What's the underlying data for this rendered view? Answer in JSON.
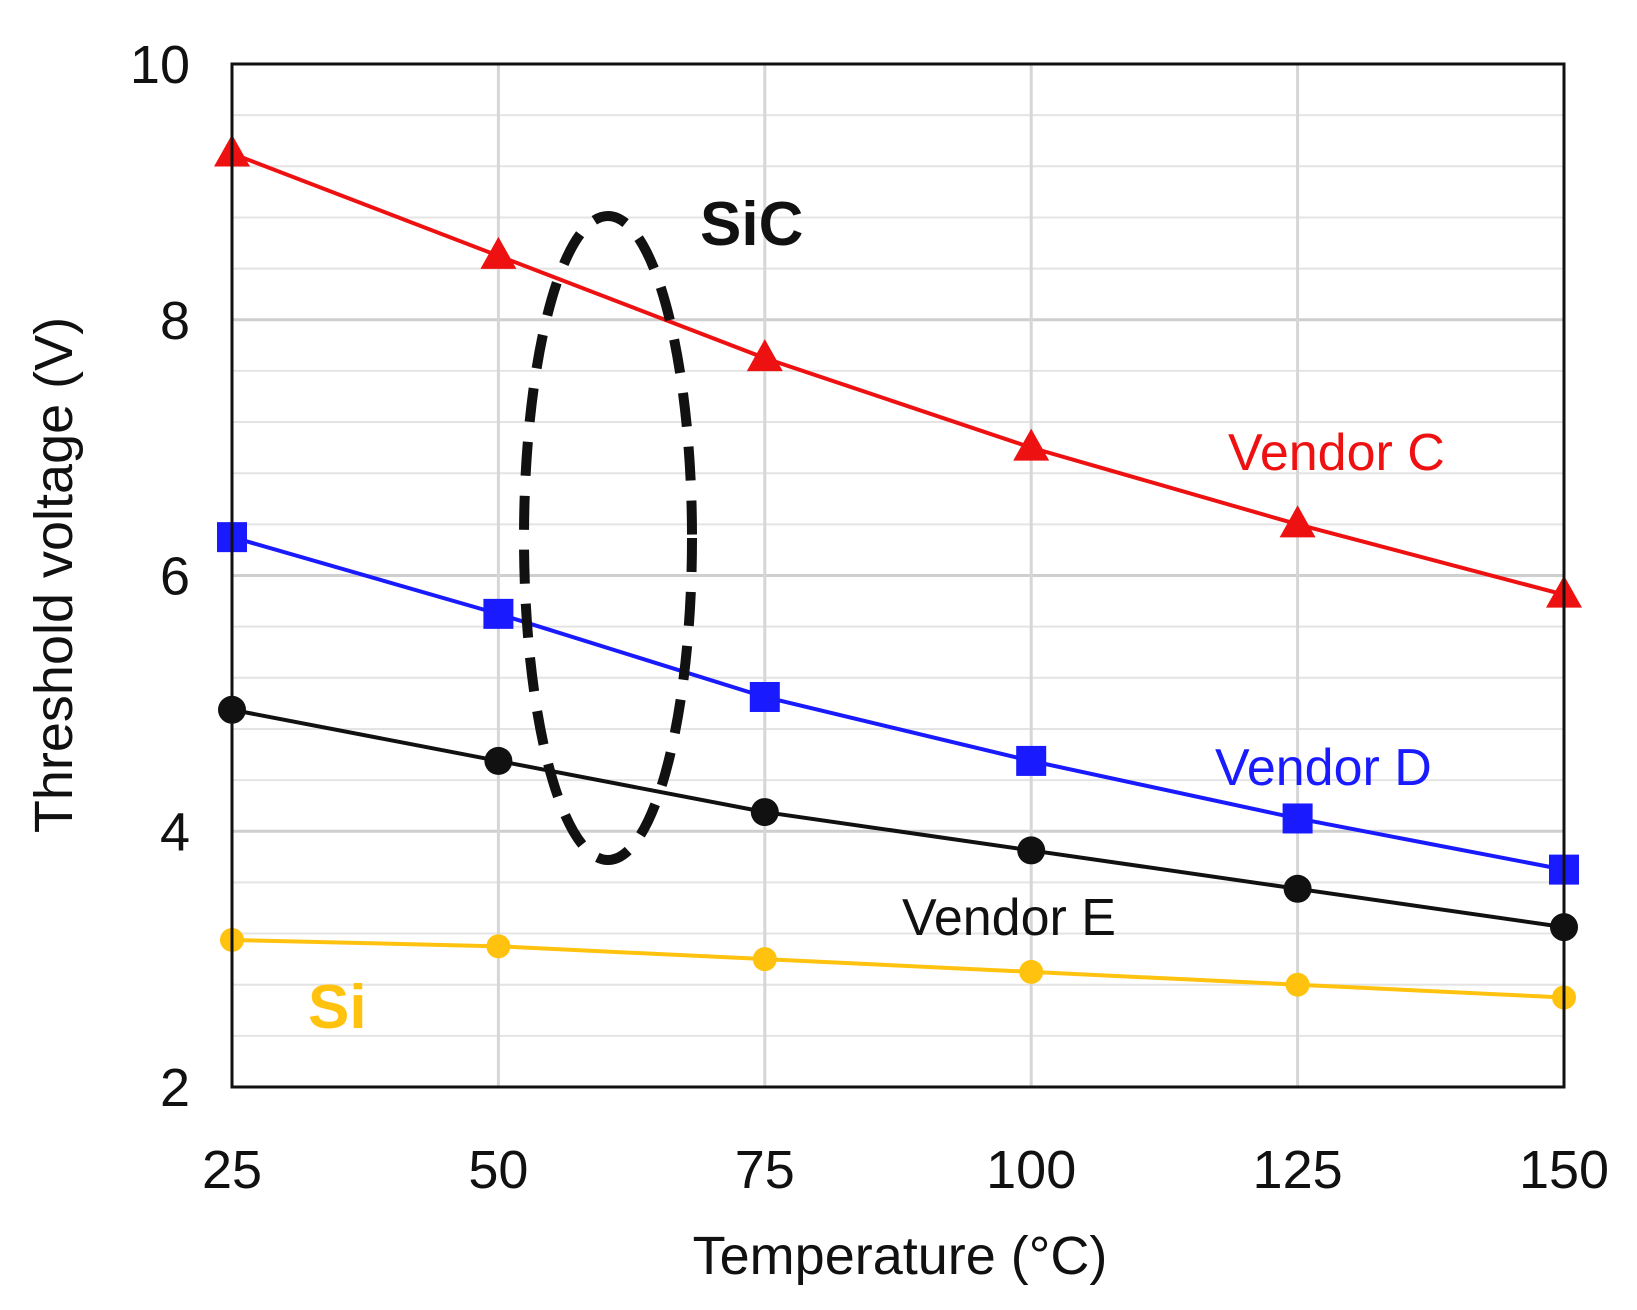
{
  "chart_data": {
    "type": "line",
    "title": "",
    "xlabel": "Temperature (°C)",
    "ylabel": "Threshold voltage (V)",
    "xlim": [
      25,
      150
    ],
    "ylim": [
      2,
      10
    ],
    "xticks": [
      25,
      50,
      75,
      100,
      125,
      150
    ],
    "yticks": [
      2,
      4,
      6,
      8,
      10
    ],
    "y_minor_step": 0.4,
    "grid": true,
    "x": [
      25,
      50,
      75,
      100,
      125,
      150
    ],
    "series": [
      {
        "name": "Vendor C",
        "label": "Vendor C",
        "color": "#ee1111",
        "marker": "triangle",
        "values": [
          9.3,
          8.5,
          7.7,
          7.0,
          6.4,
          5.85
        ]
      },
      {
        "name": "Vendor D",
        "label": "Vendor D",
        "color": "#1a1aff",
        "marker": "square",
        "values": [
          6.3,
          5.7,
          5.05,
          4.55,
          4.1,
          3.7
        ]
      },
      {
        "name": "Vendor E",
        "label": "Vendor E",
        "color": "#111111",
        "marker": "circle",
        "values": [
          4.95,
          4.55,
          4.15,
          3.85,
          3.55,
          3.25
        ]
      },
      {
        "name": "Si",
        "label": "Si",
        "color": "#ffc20e",
        "marker": "circle-small",
        "values": [
          3.15,
          3.1,
          3.0,
          2.9,
          2.8,
          2.7
        ]
      }
    ],
    "annotations": [
      {
        "text": "SiC",
        "color": "#111111",
        "note": "dashed ellipse groups SiC vendors near 60 °C"
      }
    ]
  }
}
